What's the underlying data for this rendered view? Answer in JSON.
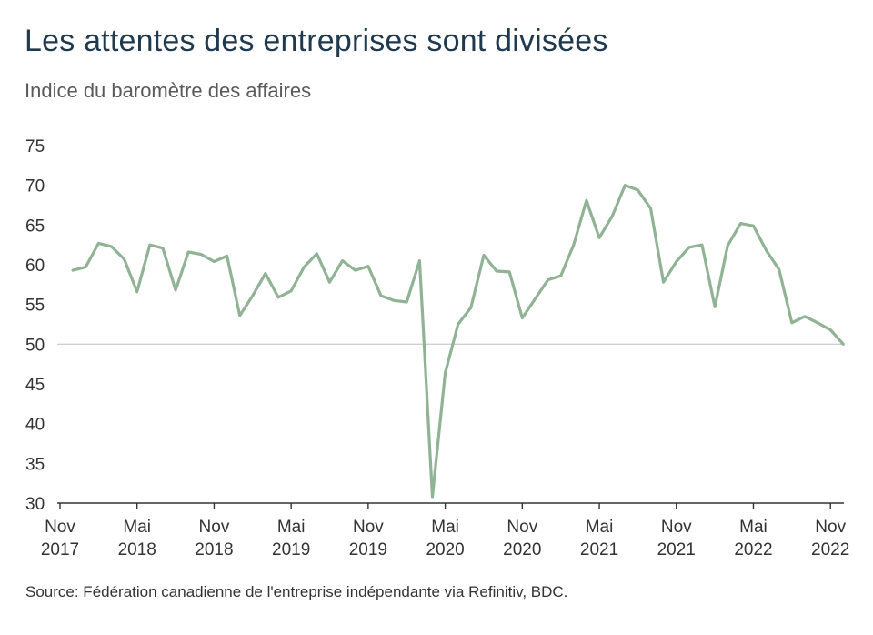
{
  "title": "Les attentes des entreprises sont divisées",
  "subtitle": "Indice du baromètre des affaires",
  "source": "Source: Fédération canadienne de l'entreprise indépendante via Refinitiv, BDC.",
  "colors": {
    "line": "#8fb394",
    "axis": "#333333",
    "reference_line": "#cfcfcf",
    "title": "#1f3a4f"
  },
  "chart_data": {
    "type": "line",
    "title": "Les attentes des entreprises sont divisées",
    "subtitle": "Indice du baromètre des affaires",
    "ylim": [
      30,
      75
    ],
    "yticks": [
      30,
      35,
      40,
      45,
      50,
      55,
      60,
      65,
      70,
      75
    ],
    "reference_line": 50,
    "grid": false,
    "x_tick_labels": [
      {
        "date": "2017-11",
        "month": "Nov",
        "year": "2017"
      },
      {
        "date": "2018-05",
        "month": "Mai",
        "year": "2018"
      },
      {
        "date": "2018-11",
        "month": "Nov",
        "year": "2018"
      },
      {
        "date": "2019-05",
        "month": "Mai",
        "year": "2019"
      },
      {
        "date": "2019-11",
        "month": "Nov",
        "year": "2019"
      },
      {
        "date": "2020-05",
        "month": "Mai",
        "year": "2020"
      },
      {
        "date": "2020-11",
        "month": "Nov",
        "year": "2020"
      },
      {
        "date": "2021-05",
        "month": "Mai",
        "year": "2021"
      },
      {
        "date": "2021-11",
        "month": "Nov",
        "year": "2021"
      },
      {
        "date": "2022-05",
        "month": "Mai",
        "year": "2022"
      },
      {
        "date": "2022-11",
        "month": "Nov",
        "year": "2022"
      }
    ],
    "x_range": [
      "2017-11",
      "2022-12"
    ],
    "series": [
      {
        "values": [
          {
            "x": "2017-12",
            "y": 59.3
          },
          {
            "x": "2018-01",
            "y": 59.7
          },
          {
            "x": "2018-02",
            "y": 62.7
          },
          {
            "x": "2018-03",
            "y": 62.3
          },
          {
            "x": "2018-04",
            "y": 60.7
          },
          {
            "x": "2018-05",
            "y": 56.6
          },
          {
            "x": "2018-06",
            "y": 62.5
          },
          {
            "x": "2018-07",
            "y": 62.1
          },
          {
            "x": "2018-08",
            "y": 56.8
          },
          {
            "x": "2018-09",
            "y": 61.6
          },
          {
            "x": "2018-10",
            "y": 61.3
          },
          {
            "x": "2018-11",
            "y": 60.4
          },
          {
            "x": "2018-12",
            "y": 61.1
          },
          {
            "x": "2019-01",
            "y": 53.6
          },
          {
            "x": "2019-02",
            "y": 56.1
          },
          {
            "x": "2019-03",
            "y": 58.9
          },
          {
            "x": "2019-04",
            "y": 55.9
          },
          {
            "x": "2019-05",
            "y": 56.7
          },
          {
            "x": "2019-06",
            "y": 59.7
          },
          {
            "x": "2019-07",
            "y": 61.4
          },
          {
            "x": "2019-08",
            "y": 57.8
          },
          {
            "x": "2019-09",
            "y": 60.5
          },
          {
            "x": "2019-10",
            "y": 59.3
          },
          {
            "x": "2019-11",
            "y": 59.8
          },
          {
            "x": "2019-12",
            "y": 56.1
          },
          {
            "x": "2020-01",
            "y": 55.5
          },
          {
            "x": "2020-02",
            "y": 55.3
          },
          {
            "x": "2020-03",
            "y": 60.5
          },
          {
            "x": "2020-04",
            "y": 30.8
          },
          {
            "x": "2020-05",
            "y": 46.4
          },
          {
            "x": "2020-06",
            "y": 52.5
          },
          {
            "x": "2020-07",
            "y": 54.6
          },
          {
            "x": "2020-08",
            "y": 61.2
          },
          {
            "x": "2020-09",
            "y": 59.2
          },
          {
            "x": "2020-10",
            "y": 59.1
          },
          {
            "x": "2020-11",
            "y": 53.3
          },
          {
            "x": "2020-12",
            "y": 55.7
          },
          {
            "x": "2021-01",
            "y": 58.1
          },
          {
            "x": "2021-02",
            "y": 58.6
          },
          {
            "x": "2021-03",
            "y": 62.5
          },
          {
            "x": "2021-04",
            "y": 68.1
          },
          {
            "x": "2021-05",
            "y": 63.4
          },
          {
            "x": "2021-06",
            "y": 66.1
          },
          {
            "x": "2021-07",
            "y": 70.0
          },
          {
            "x": "2021-08",
            "y": 69.4
          },
          {
            "x": "2021-09",
            "y": 67.1
          },
          {
            "x": "2021-10",
            "y": 57.8
          },
          {
            "x": "2021-11",
            "y": 60.4
          },
          {
            "x": "2021-12",
            "y": 62.2
          },
          {
            "x": "2022-01",
            "y": 62.5
          },
          {
            "x": "2022-02",
            "y": 54.7
          },
          {
            "x": "2022-03",
            "y": 62.4
          },
          {
            "x": "2022-04",
            "y": 65.2
          },
          {
            "x": "2022-05",
            "y": 64.9
          },
          {
            "x": "2022-06",
            "y": 61.8
          },
          {
            "x": "2022-07",
            "y": 59.4
          },
          {
            "x": "2022-08",
            "y": 52.7
          },
          {
            "x": "2022-09",
            "y": 53.5
          },
          {
            "x": "2022-10",
            "y": 52.7
          },
          {
            "x": "2022-11",
            "y": 51.8
          },
          {
            "x": "2022-12",
            "y": 50.0
          }
        ]
      }
    ]
  }
}
